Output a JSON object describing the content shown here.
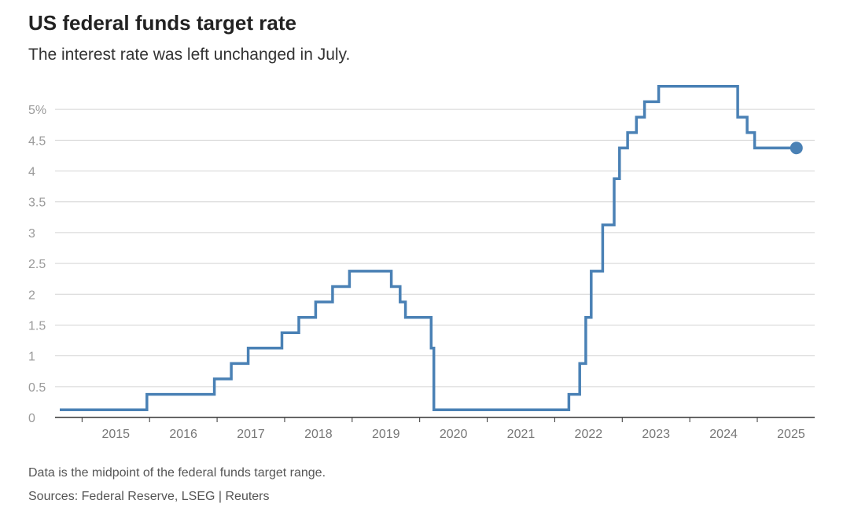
{
  "title": "US federal funds target rate",
  "subtitle": "The interest rate was left unchanged in July.",
  "footnote": "Data is the midpoint of the federal funds target range.",
  "source": "Sources: Federal Reserve, LSEG | Reuters",
  "colors": {
    "line": "#4a81b5",
    "grid": "#d4d4d4",
    "axis": "#333333",
    "tick_text": "#9a9a9a"
  },
  "chart_data": {
    "type": "line",
    "step": true,
    "title": "US federal funds target rate",
    "subtitle": "The interest rate was left unchanged in July.",
    "xlabel": "",
    "ylabel": "",
    "xlim": [
      2014.6,
      2025.85
    ],
    "ylim": [
      0,
      5.5
    ],
    "grid": true,
    "end_marker": true,
    "y_ticks": [
      {
        "value": 0,
        "label": "0"
      },
      {
        "value": 0.5,
        "label": "0.5"
      },
      {
        "value": 1,
        "label": "1"
      },
      {
        "value": 1.5,
        "label": "1.5"
      },
      {
        "value": 2,
        "label": "2"
      },
      {
        "value": 2.5,
        "label": "2.5"
      },
      {
        "value": 3,
        "label": "3"
      },
      {
        "value": 3.5,
        "label": "3.5"
      },
      {
        "value": 4,
        "label": "4"
      },
      {
        "value": 4.5,
        "label": "4.5"
      },
      {
        "value": 5,
        "label": "5%"
      }
    ],
    "x_ticks": [
      {
        "value": 2015.0,
        "label": "2015"
      },
      {
        "value": 2016.0,
        "label": "2016"
      },
      {
        "value": 2017.0,
        "label": "2017"
      },
      {
        "value": 2018.0,
        "label": "2018"
      },
      {
        "value": 2019.0,
        "label": "2019"
      },
      {
        "value": 2020.0,
        "label": "2020"
      },
      {
        "value": 2021.0,
        "label": "2021"
      },
      {
        "value": 2022.0,
        "label": "2022"
      },
      {
        "value": 2023.0,
        "label": "2023"
      },
      {
        "value": 2024.0,
        "label": "2024"
      },
      {
        "value": 2025.0,
        "label": "2025"
      }
    ],
    "series": [
      {
        "points": [
          {
            "x": 2014.67,
            "y": 0.125
          },
          {
            "x": 2015.96,
            "y": 0.375
          },
          {
            "x": 2016.96,
            "y": 0.625
          },
          {
            "x": 2017.21,
            "y": 0.875
          },
          {
            "x": 2017.46,
            "y": 1.125
          },
          {
            "x": 2017.96,
            "y": 1.375
          },
          {
            "x": 2018.21,
            "y": 1.625
          },
          {
            "x": 2018.46,
            "y": 1.875
          },
          {
            "x": 2018.71,
            "y": 2.125
          },
          {
            "x": 2018.96,
            "y": 2.375
          },
          {
            "x": 2019.58,
            "y": 2.125
          },
          {
            "x": 2019.71,
            "y": 1.875
          },
          {
            "x": 2019.79,
            "y": 1.625
          },
          {
            "x": 2020.17,
            "y": 1.125
          },
          {
            "x": 2020.21,
            "y": 0.125
          },
          {
            "x": 2022.21,
            "y": 0.375
          },
          {
            "x": 2022.37,
            "y": 0.875
          },
          {
            "x": 2022.46,
            "y": 1.625
          },
          {
            "x": 2022.54,
            "y": 2.375
          },
          {
            "x": 2022.71,
            "y": 3.125
          },
          {
            "x": 2022.88,
            "y": 3.875
          },
          {
            "x": 2022.96,
            "y": 4.375
          },
          {
            "x": 2023.08,
            "y": 4.625
          },
          {
            "x": 2023.21,
            "y": 4.875
          },
          {
            "x": 2023.33,
            "y": 5.125
          },
          {
            "x": 2023.54,
            "y": 5.375
          },
          {
            "x": 2024.71,
            "y": 4.875
          },
          {
            "x": 2024.85,
            "y": 4.625
          },
          {
            "x": 2024.96,
            "y": 4.375
          },
          {
            "x": 2025.58,
            "y": 4.375
          }
        ]
      }
    ]
  }
}
